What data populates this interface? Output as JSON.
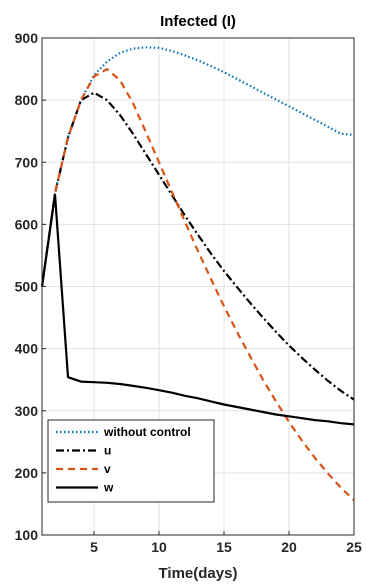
{
  "chart_data": {
    "type": "line",
    "title": "Infected (I)",
    "xlabel": "Time(days)",
    "ylabel": "",
    "xlim": [
      1,
      25
    ],
    "ylim": [
      100,
      900
    ],
    "xticks": [
      5,
      10,
      15,
      20,
      25
    ],
    "yticks": [
      100,
      200,
      300,
      400,
      500,
      600,
      700,
      800,
      900
    ],
    "grid": true,
    "legend_position": "bottom-left",
    "series": [
      {
        "name": "without control",
        "color": "#0072BD",
        "style": "dotted",
        "x": [
          1,
          2,
          3,
          4,
          5,
          6,
          7,
          8,
          9,
          10,
          11,
          12,
          13,
          14,
          15,
          16,
          17,
          18,
          19,
          20,
          21,
          22,
          23,
          24,
          25
        ],
        "y": [
          500,
          650,
          740,
          800,
          840,
          862,
          876,
          883,
          885,
          884,
          879,
          872,
          864,
          855,
          845,
          834,
          823,
          812,
          801,
          790,
          779,
          768,
          757,
          746,
          744
        ]
      },
      {
        "name": "u",
        "color": "#000000",
        "style": "dashdot",
        "x": [
          1,
          2,
          3,
          4,
          5,
          6,
          7,
          8,
          9,
          10,
          11,
          12,
          13,
          14,
          15,
          16,
          17,
          18,
          19,
          20,
          21,
          22,
          23,
          24,
          25
        ],
        "y": [
          500,
          650,
          740,
          800,
          812,
          800,
          776,
          746,
          713,
          680,
          647,
          614,
          583,
          553,
          525,
          499,
          474,
          450,
          427,
          405,
          385,
          366,
          348,
          332,
          318
        ]
      },
      {
        "name": "v",
        "color": "#D95319",
        "style": "dashed",
        "x": [
          1,
          2,
          3,
          4,
          5,
          6,
          7,
          8,
          9,
          10,
          11,
          12,
          13,
          14,
          15,
          16,
          17,
          18,
          19,
          20,
          21,
          22,
          23,
          24,
          25
        ],
        "y": [
          500,
          650,
          740,
          800,
          838,
          850,
          832,
          795,
          748,
          700,
          652,
          604,
          557,
          512,
          468,
          427,
          388,
          350,
          315,
          282,
          252,
          224,
          199,
          176,
          156
        ]
      },
      {
        "name": "w",
        "color": "#000000",
        "style": "solid",
        "x": [
          1,
          2,
          3,
          4,
          5,
          6,
          7,
          8,
          9,
          10,
          11,
          12,
          13,
          14,
          15,
          16,
          17,
          18,
          19,
          20,
          21,
          22,
          23,
          24,
          25
        ],
        "y": [
          500,
          648,
          354,
          347,
          346,
          345,
          343,
          340,
          337,
          333,
          329,
          324,
          320,
          315,
          310,
          306,
          302,
          298,
          294,
          291,
          288,
          285,
          283,
          280,
          278
        ]
      }
    ]
  }
}
